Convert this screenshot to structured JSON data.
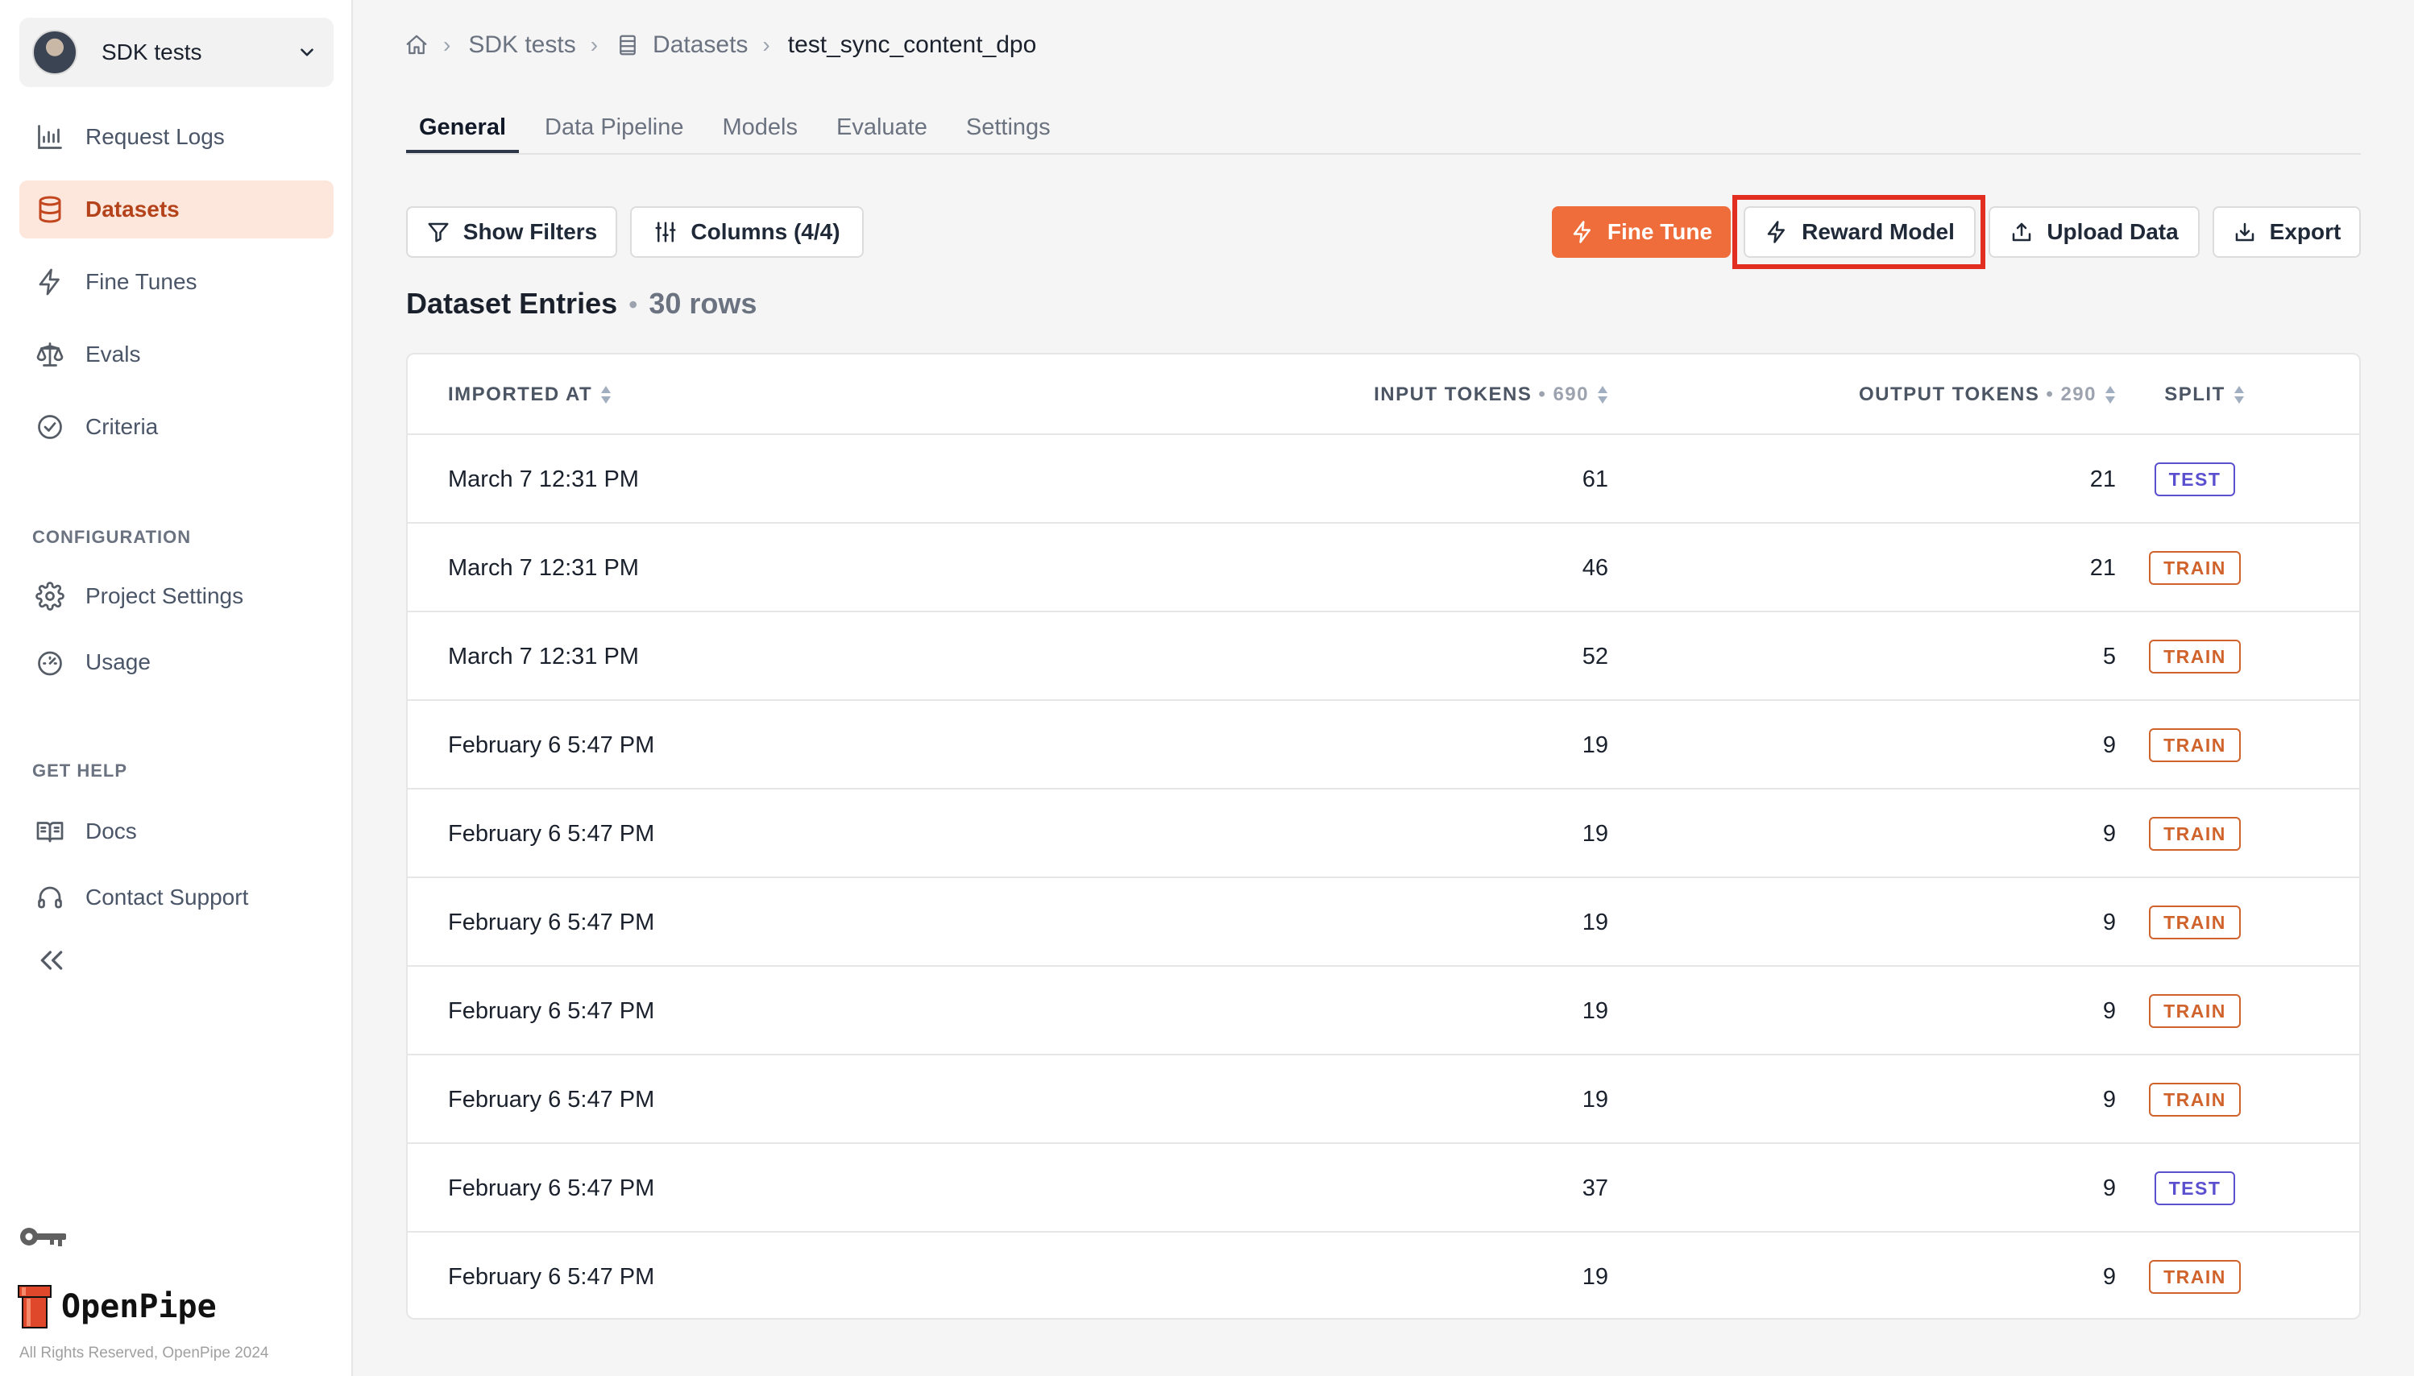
{
  "sidebar": {
    "project_name": "SDK tests",
    "nav_items": [
      {
        "label": "Request Logs",
        "icon": "bar-chart-icon",
        "active": false
      },
      {
        "label": "Datasets",
        "icon": "database-icon",
        "active": true
      },
      {
        "label": "Fine Tunes",
        "icon": "lightning-icon",
        "active": false
      },
      {
        "label": "Evals",
        "icon": "scale-icon",
        "active": false
      },
      {
        "label": "Criteria",
        "icon": "check-circle-icon",
        "active": false
      }
    ],
    "configuration_label": "CONFIGURATION",
    "configuration_items": [
      {
        "label": "Project Settings",
        "icon": "gear-icon"
      },
      {
        "label": "Usage",
        "icon": "gauge-icon"
      }
    ],
    "help_label": "GET HELP",
    "help_items": [
      {
        "label": "Docs",
        "icon": "book-icon"
      },
      {
        "label": "Contact Support",
        "icon": "headset-icon"
      }
    ],
    "brand": "OpenPipe",
    "copyright": "All Rights Reserved, OpenPipe 2024"
  },
  "breadcrumb": {
    "project": "SDK tests",
    "section": "Datasets",
    "current": "test_sync_content_dpo"
  },
  "tabs": [
    {
      "label": "General",
      "active": true
    },
    {
      "label": "Data Pipeline",
      "active": false
    },
    {
      "label": "Models",
      "active": false
    },
    {
      "label": "Evaluate",
      "active": false
    },
    {
      "label": "Settings",
      "active": false
    }
  ],
  "toolbar": {
    "show_filters": "Show Filters",
    "columns": "Columns (4/4)",
    "fine_tune": "Fine Tune",
    "reward_model": "Reward Model",
    "upload_data": "Upload Data",
    "export": "Export"
  },
  "entries": {
    "title": "Dataset Entries",
    "count": "30 rows"
  },
  "table": {
    "headers": {
      "imported_at": "IMPORTED AT",
      "input_tokens": "INPUT TOKENS",
      "input_tokens_total": "• 690",
      "output_tokens": "OUTPUT TOKENS",
      "output_tokens_total": "• 290",
      "split": "SPLIT"
    },
    "rows": [
      {
        "imported_at": "March 7 12:31 PM",
        "input_tokens": "61",
        "output_tokens": "21",
        "split": "TEST"
      },
      {
        "imported_at": "March 7 12:31 PM",
        "input_tokens": "46",
        "output_tokens": "21",
        "split": "TRAIN"
      },
      {
        "imported_at": "March 7 12:31 PM",
        "input_tokens": "52",
        "output_tokens": "5",
        "split": "TRAIN"
      },
      {
        "imported_at": "February 6 5:47 PM",
        "input_tokens": "19",
        "output_tokens": "9",
        "split": "TRAIN"
      },
      {
        "imported_at": "February 6 5:47 PM",
        "input_tokens": "19",
        "output_tokens": "9",
        "split": "TRAIN"
      },
      {
        "imported_at": "February 6 5:47 PM",
        "input_tokens": "19",
        "output_tokens": "9",
        "split": "TRAIN"
      },
      {
        "imported_at": "February 6 5:47 PM",
        "input_tokens": "19",
        "output_tokens": "9",
        "split": "TRAIN"
      },
      {
        "imported_at": "February 6 5:47 PM",
        "input_tokens": "19",
        "output_tokens": "9",
        "split": "TRAIN"
      },
      {
        "imported_at": "February 6 5:47 PM",
        "input_tokens": "37",
        "output_tokens": "9",
        "split": "TEST"
      },
      {
        "imported_at": "February 6 5:47 PM",
        "input_tokens": "19",
        "output_tokens": "9",
        "split": "TRAIN"
      }
    ]
  },
  "colors": {
    "accent": "#ef6d3a",
    "active_nav_bg": "#fde7dc",
    "test_badge": "#5a4fcf",
    "train_badge": "#d0632c",
    "highlight": "#e12e20"
  }
}
